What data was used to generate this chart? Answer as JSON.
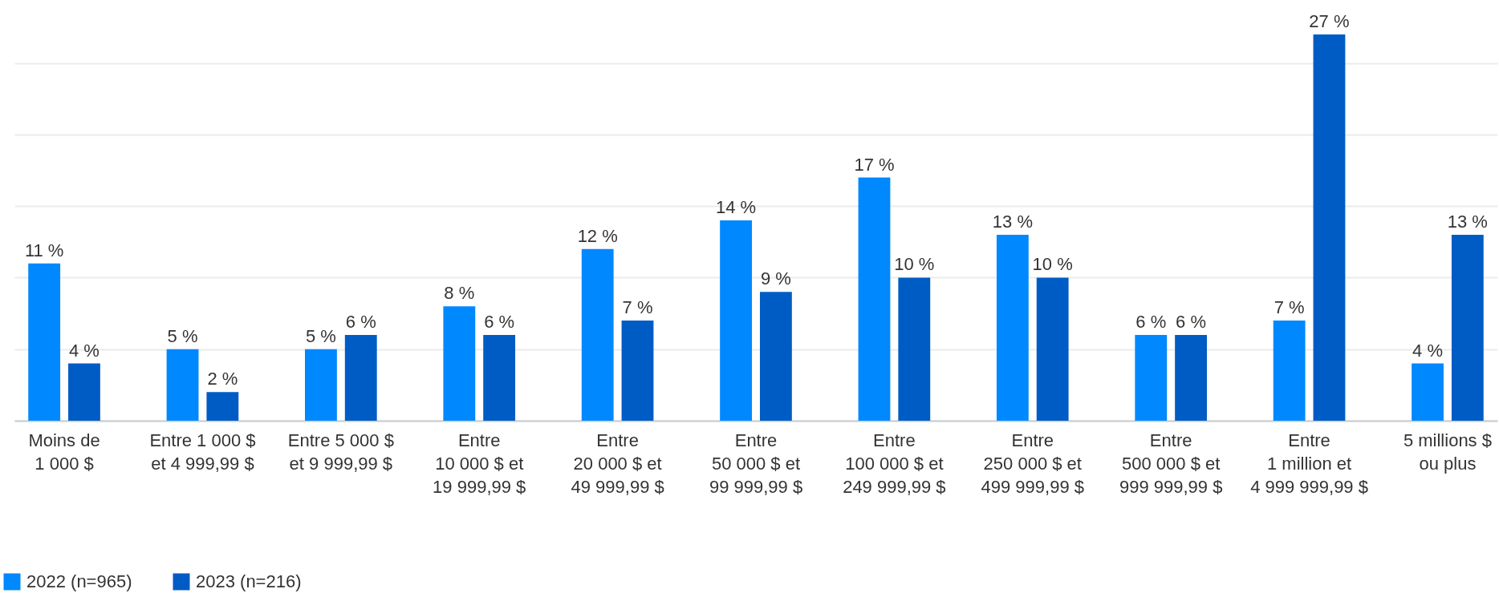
{
  "chart_data": {
    "type": "bar",
    "categories": [
      "Moins de\n1 000 $",
      "Entre 1 000 $\net 4 999,99 $",
      "Entre 5 000 $\net 9 999,99 $",
      "Entre\n10 000 $ et\n19 999,99 $",
      "Entre\n20 000 $ et\n49 999,99 $",
      "Entre\n50 000 $ et\n99 999,99 $",
      "Entre\n100 000 $ et\n249 999,99 $",
      "Entre\n250 000 $ et\n499 999,99 $",
      "Entre\n500 000 $ et\n999 999,99 $",
      "Entre\n1 million et\n4 999 999,99 $",
      "5 millions $\nou plus"
    ],
    "series": [
      {
        "name": "2022 (n=965)",
        "color": "#0088ff",
        "values": [
          11,
          5,
          5,
          8,
          12,
          14,
          17,
          13,
          6,
          7,
          4
        ],
        "value_labels": [
          "11 %",
          "5 %",
          "5 %",
          "8 %",
          "12 %",
          "14 %",
          "17 %",
          "13 %",
          "6 %",
          "7 %",
          "4 %"
        ]
      },
      {
        "name": "2023 (n=216)",
        "color": "#005cc5",
        "values": [
          4,
          2,
          6,
          6,
          7,
          9,
          10,
          10,
          6,
          27,
          13
        ],
        "value_labels": [
          "4 %",
          "2 %",
          "6 %",
          "6 %",
          "7 %",
          "9 %",
          "10 %",
          "10 %",
          "6 %",
          "27 %",
          "13 %"
        ]
      }
    ],
    "yticks": [
      {
        "value": 0,
        "label": null
      },
      {
        "value": 5,
        "label": null
      },
      {
        "value": 10,
        "label": null
      },
      {
        "value": 15,
        "label": null
      },
      {
        "value": 20,
        "label": null
      },
      {
        "value": 25,
        "label": null
      }
    ],
    "tick_labels": "x",
    "grid": "y",
    "legend": "bottom left"
  }
}
